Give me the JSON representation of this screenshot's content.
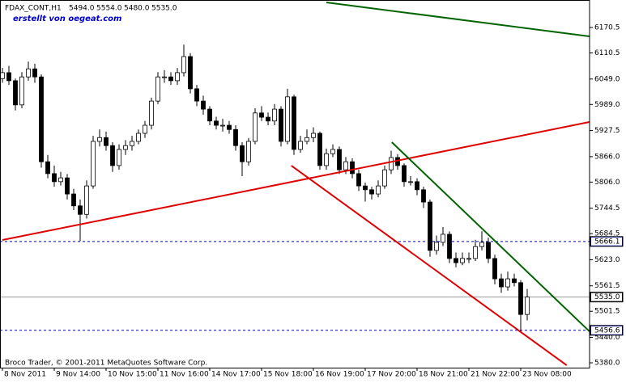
{
  "chart_data": {
    "type": "candlestick",
    "title": "FDAX_CONT,H1",
    "ohlc_header": [
      "5494.0",
      "5554.0",
      "5480.0",
      "5535.0"
    ],
    "subtitle": "erstellt von oegeat.com",
    "footer": "Broco Trader, © 2001-2011 MetaQuotes Software Corp.",
    "categories": [
      "8 Nov 2011",
      null,
      null,
      null,
      null,
      null,
      null,
      null,
      "9 Nov 14:00",
      null,
      null,
      null,
      null,
      null,
      null,
      null,
      "10 Nov 15:00",
      null,
      null,
      null,
      null,
      null,
      null,
      null,
      "11 Nov 16:00",
      null,
      null,
      null,
      null,
      null,
      null,
      null,
      "14 Nov 17:00",
      null,
      null,
      null,
      null,
      null,
      null,
      null,
      "15 Nov 18:00",
      null,
      null,
      null,
      null,
      null,
      null,
      null,
      "16 Nov 19:00",
      null,
      null,
      null,
      null,
      null,
      null,
      null,
      "17 Nov 20:00",
      null,
      null,
      null,
      null,
      null,
      null,
      null,
      "18 Nov 21:00",
      null,
      null,
      null,
      null,
      null,
      null,
      null,
      "21 Nov 22:00",
      null,
      null,
      null,
      null,
      null,
      null,
      null,
      "23 Nov 08:00",
      null
    ],
    "candles": [
      [
        6050,
        6075,
        6040,
        6064
      ],
      [
        6064,
        6080,
        6035,
        6045
      ],
      [
        6045,
        6050,
        5975,
        5988
      ],
      [
        5988,
        6065,
        5980,
        6054
      ],
      [
        6054,
        6090,
        6045,
        6073
      ],
      [
        6073,
        6085,
        6040,
        6054
      ],
      [
        6054,
        6060,
        5840,
        5854
      ],
      [
        5854,
        5870,
        5815,
        5826
      ],
      [
        5826,
        5845,
        5795,
        5807
      ],
      [
        5807,
        5830,
        5798,
        5816
      ],
      [
        5816,
        5825,
        5765,
        5778
      ],
      [
        5778,
        5790,
        5740,
        5750
      ],
      [
        5750,
        5765,
        5667,
        5730
      ],
      [
        5730,
        5810,
        5720,
        5797
      ],
      [
        5797,
        5915,
        5790,
        5902
      ],
      [
        5902,
        5930,
        5890,
        5911
      ],
      [
        5911,
        5925,
        5880,
        5892
      ],
      [
        5892,
        5900,
        5830,
        5845
      ],
      [
        5845,
        5895,
        5835,
        5883
      ],
      [
        5883,
        5905,
        5870,
        5892
      ],
      [
        5892,
        5915,
        5880,
        5902
      ],
      [
        5902,
        5930,
        5895,
        5921
      ],
      [
        5921,
        5950,
        5910,
        5940
      ],
      [
        5940,
        6005,
        5930,
        5997
      ],
      [
        5997,
        6065,
        5990,
        6054
      ],
      [
        6054,
        6070,
        6040,
        6054
      ],
      [
        6054,
        6065,
        6035,
        6045
      ],
      [
        6045,
        6075,
        6035,
        6064
      ],
      [
        6064,
        6130,
        6055,
        6102
      ],
      [
        6102,
        6110,
        6015,
        6026
      ],
      [
        6026,
        6035,
        5985,
        5997
      ],
      [
        5997,
        6010,
        5965,
        5978
      ],
      [
        5978,
        5985,
        5940,
        5950
      ],
      [
        5950,
        5960,
        5930,
        5940
      ],
      [
        5940,
        5955,
        5925,
        5940
      ],
      [
        5940,
        5950,
        5920,
        5930
      ],
      [
        5930,
        5940,
        5880,
        5892
      ],
      [
        5892,
        5900,
        5820,
        5854
      ],
      [
        5854,
        5910,
        5845,
        5902
      ],
      [
        5902,
        5980,
        5895,
        5969
      ],
      [
        5969,
        5985,
        5950,
        5959
      ],
      [
        5959,
        5970,
        5940,
        5950
      ],
      [
        5950,
        5990,
        5940,
        5978
      ],
      [
        5978,
        5985,
        5890,
        5902
      ],
      [
        5902,
        6026,
        5895,
        6007
      ],
      [
        6007,
        6012,
        5870,
        5883
      ],
      [
        5883,
        5915,
        5875,
        5902
      ],
      [
        5902,
        5930,
        5895,
        5911
      ],
      [
        5911,
        5935,
        5900,
        5921
      ],
      [
        5921,
        5925,
        5835,
        5845
      ],
      [
        5845,
        5885,
        5835,
        5873
      ],
      [
        5873,
        5895,
        5865,
        5883
      ],
      [
        5883,
        5890,
        5825,
        5835
      ],
      [
        5835,
        5865,
        5825,
        5854
      ],
      [
        5854,
        5862,
        5815,
        5826
      ],
      [
        5826,
        5835,
        5785,
        5797
      ],
      [
        5797,
        5805,
        5760,
        5788
      ],
      [
        5788,
        5795,
        5765,
        5778
      ],
      [
        5778,
        5810,
        5770,
        5797
      ],
      [
        5797,
        5845,
        5790,
        5835
      ],
      [
        5835,
        5880,
        5825,
        5864
      ],
      [
        5864,
        5872,
        5835,
        5845
      ],
      [
        5845,
        5850,
        5795,
        5807
      ],
      [
        5807,
        5820,
        5798,
        5807
      ],
      [
        5807,
        5815,
        5775,
        5788
      ],
      [
        5788,
        5795,
        5745,
        5759
      ],
      [
        5759,
        5765,
        5630,
        5645
      ],
      [
        5645,
        5680,
        5635,
        5664
      ],
      [
        5664,
        5700,
        5655,
        5683
      ],
      [
        5683,
        5690,
        5615,
        5626
      ],
      [
        5626,
        5640,
        5605,
        5616
      ],
      [
        5616,
        5640,
        5610,
        5626
      ],
      [
        5626,
        5640,
        5615,
        5626
      ],
      [
        5626,
        5670,
        5620,
        5654
      ],
      [
        5654,
        5690,
        5645,
        5664
      ],
      [
        5664,
        5675,
        5615,
        5626
      ],
      [
        5626,
        5635,
        5565,
        5578
      ],
      [
        5578,
        5590,
        5545,
        5559
      ],
      [
        5559,
        5595,
        5550,
        5578
      ],
      [
        5578,
        5590,
        5560,
        5569
      ],
      [
        5569,
        5575,
        5452,
        5494
      ],
      [
        5494,
        5554,
        5480,
        5535
      ]
    ],
    "ylim": [
      5368.6,
      6235.3
    ],
    "yticks": [
      6170.5,
      6110.5,
      {
        "value": 6049,
        "label": "6049.0"
      },
      {
        "value": 5989,
        "label": "5989.0"
      },
      5927.5,
      {
        "value": 5866,
        "label": "5866.0"
      },
      {
        "value": 5806,
        "label": "5806.0"
      },
      5744.5,
      5684.5,
      {
        "value": 5623,
        "label": "5623.0"
      },
      5561.5,
      5501.5,
      {
        "value": 5440,
        "label": "5440.0"
      },
      {
        "value": 5380,
        "label": "5380.0"
      }
    ],
    "levels": {
      "values": [
        5666.1,
        5535.0,
        5456.6
      ],
      "value_labels": [
        "5666.1",
        "5535.0",
        "5456.6"
      ],
      "colors": [
        "#0000cc",
        "#999999",
        "#0000cc"
      ]
    },
    "trendlines": [
      {
        "color": "#006400",
        "x": [
          50,
          90.6
        ],
        "y": [
          6229.6,
          6149.6
        ]
      },
      {
        "color": "#e00000",
        "x": [
          0,
          90.6
        ],
        "y": [
          5669.5,
          5947.6
        ]
      },
      {
        "color": "#006400",
        "x": [
          60.1,
          90.6
        ],
        "y": [
          5900.0,
          5454.2
        ]
      },
      {
        "color": "#e00000",
        "x": [
          44.6,
          87.1
        ],
        "y": [
          5844.8,
          5374.2
        ]
      }
    ]
  }
}
